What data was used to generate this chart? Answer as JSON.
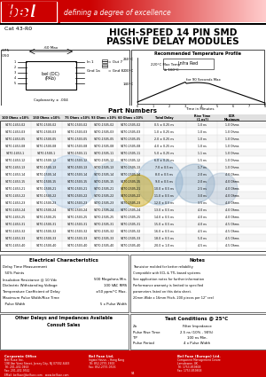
{
  "title_line1": "HIGH-SPEED 14 PIN SMD",
  "title_line2": "PASSIVE DELAY MODULES",
  "cat_number": "Cat 43-R0",
  "brand": "bel",
  "tagline": "defining a degree of excellence",
  "bg_color": "#ffffff",
  "header_red": "#cc0000",
  "header_gradient_end": "#ffcccc",
  "part_numbers_header": "Part Numbers",
  "table_columns": [
    "100 Ohms ± 10%",
    "150 Ohms ± 10%",
    "75 Ohms ± 10%",
    "93 Ohms ± 10%",
    "60 Ohms ± 10%",
    "Total Delay",
    "Rise Time (1 ns?)",
    "DCR Maximum"
  ],
  "table_rows": [
    [
      "S470-1453-02",
      "S470-1500-02",
      "S470-1503-02",
      "S470-1505-02",
      "S470-1505-02",
      "0.5 ± 0.25 ns",
      "1.0 ns",
      "1.0 Ohms"
    ],
    [
      "S470-1453-03",
      "S470-1500-03",
      "S470-1503-03",
      "S470-1505-03",
      "S470-1505-03",
      "1.0 ± 0.25 ns",
      "1.0 ns",
      "1.0 Ohms"
    ],
    [
      "S470-1453-05",
      "S470-1500-05",
      "S470-1503-05",
      "S470-1505-05",
      "S470-1505-05",
      "2.0 ± 0.25 ns",
      "1.0 ns",
      "1.0 Ohms"
    ],
    [
      "S470-1453-08",
      "S470-1500-08",
      "S470-1503-08",
      "S470-1505-08",
      "S470-1505-08",
      "4.0 ± 0.25 ns",
      "1.0 ns",
      "1.0 Ohms"
    ],
    [
      "S470-1453-1",
      "S470-1500-1",
      "S470-1503-11",
      "S470-1505-11",
      "S470-1505-11",
      "5.0 ± 0.25 ns",
      "1.1 ns",
      "1.0 Ohms"
    ],
    [
      "S470-1453-12",
      "S470-1500-12",
      "S470-1503-12",
      "S470-1505-12",
      "S470-1505-12",
      "6.0 ± 0.25 ns",
      "1.5 ns",
      "1.0 Ohms"
    ],
    [
      "S470-1453-13",
      "S470-1500-13",
      "S470-1503-13",
      "S470-1505-13",
      "S470-1505-13",
      "7.0 ± 0.5 ns",
      "1.7 ns",
      "1.0 Ohms"
    ],
    [
      "S470-1453-14",
      "S470-1500-14",
      "S470-1503-14",
      "S470-1505-14",
      "S470-1505-14",
      "8.0 ± 0.5 ns",
      "2.0 ns",
      "4.0 Ohms"
    ],
    [
      "S470-1453-15",
      "S470-1500-15",
      "S470-1503-15",
      "S470-1505-15",
      "S470-1505-15",
      "9.0 ± 0.5 ns",
      "2.0 ns",
      "4.0 Ohms"
    ],
    [
      "S470-1453-21",
      "S470-1500-21",
      "S470-1503-21",
      "S470-1505-21",
      "S470-1505-21",
      "10.0 ± 0.5 ns",
      "2.5 ns",
      "4.0 Ohms"
    ],
    [
      "S470-1453-22",
      "S470-1500-22",
      "S470-1503-22",
      "S470-1505-22",
      "S470-1505-22",
      "11.0 ± 0.5 ns",
      "3.0 ns",
      "4.0 Ohms"
    ],
    [
      "S470-1453-23",
      "S470-1500-23",
      "S470-1503-23",
      "S470-1505-23",
      "S470-1505-23",
      "12.0 ± 0.5 ns",
      "3.5 ns",
      "4.0 Ohms"
    ],
    [
      "S470-1453-24",
      "S470-1500-24",
      "S470-1503-24",
      "S470-1505-24",
      "S470-1505-24",
      "13.0 ± 0.5 ns",
      "4.0 ns",
      "4.0 Ohms"
    ],
    [
      "S470-1453-25",
      "S470-1500-25",
      "S470-1503-25",
      "S470-1505-25",
      "S470-1505-25",
      "14.0 ± 0.5 ns",
      "4.0 ns",
      "4.0 Ohms"
    ],
    [
      "S470-1453-31",
      "S470-1500-31",
      "S470-1503-31",
      "S470-1505-31",
      "S470-1505-31",
      "15.0 ± 0.5 ns",
      "4.0 ns",
      "4.5 Ohms"
    ],
    [
      "S470-1453-32",
      "S470-1500-32",
      "S470-1503-32",
      "S470-1505-32",
      "S470-1505-32",
      "16.0 ± 0.5 ns",
      "4.5 ns",
      "4.5 Ohms"
    ],
    [
      "S470-1453-33",
      "S470-1500-33",
      "S470-1503-33",
      "S470-1505-33",
      "S470-1505-33",
      "18.0 ± 0.5 ns",
      "5.0 ns",
      "4.5 Ohms"
    ],
    [
      "S470-1453-40",
      "S470-1500-40",
      "S470-1503-40",
      "S470-1505-40",
      "S470-1505-40",
      "20.0 ± 1.0 ns",
      "4.5 ns",
      "4.5 Ohms"
    ]
  ],
  "elec_char_title": "Electrical Characteristics",
  "elec_items": [
    "Delay Time Measurement",
    "  50% Points",
    "Insulation Resistance @ 10 Vdc",
    "Dielectric Withstanding Voltage",
    "Temperature Coefficient of Delay",
    "Maximum Pulse Width/Rise Time",
    "  Pulse Width"
  ],
  "elec_values": [
    "",
    "",
    "500 Megohms Min.",
    "100 VAC RMS",
    "±50 ppm/°C Max.",
    "",
    "5 x Pulse Width"
  ],
  "notes_title": "Notes",
  "notes_text": "Transistor molded for better reliability\nCompatible with ECL & TTL based systems\nSee application notes for further information\nPerformance warranty is limited to specified parameters listed\non this data sheet.\n20mm Wide x 16mm Pitch, 200 pieces per 12\" reel",
  "test_cond_title": "Test Conditions @ 25°C",
  "test_items": [
    "Zo",
    "Pulse Rise Time",
    "TP",
    "Pulse Period"
  ],
  "test_values": [
    "Filter Impedance",
    "2.5 ns (10% - 90%)",
    "100 ns Min.",
    "4 x Pulse Width"
  ],
  "footer_color": "#cc0000",
  "watermark_colors": [
    "#a0c0e0",
    "#c8a000"
  ],
  "other_delays_text": "Other Delays and Impedances Available\nConsult Sales"
}
